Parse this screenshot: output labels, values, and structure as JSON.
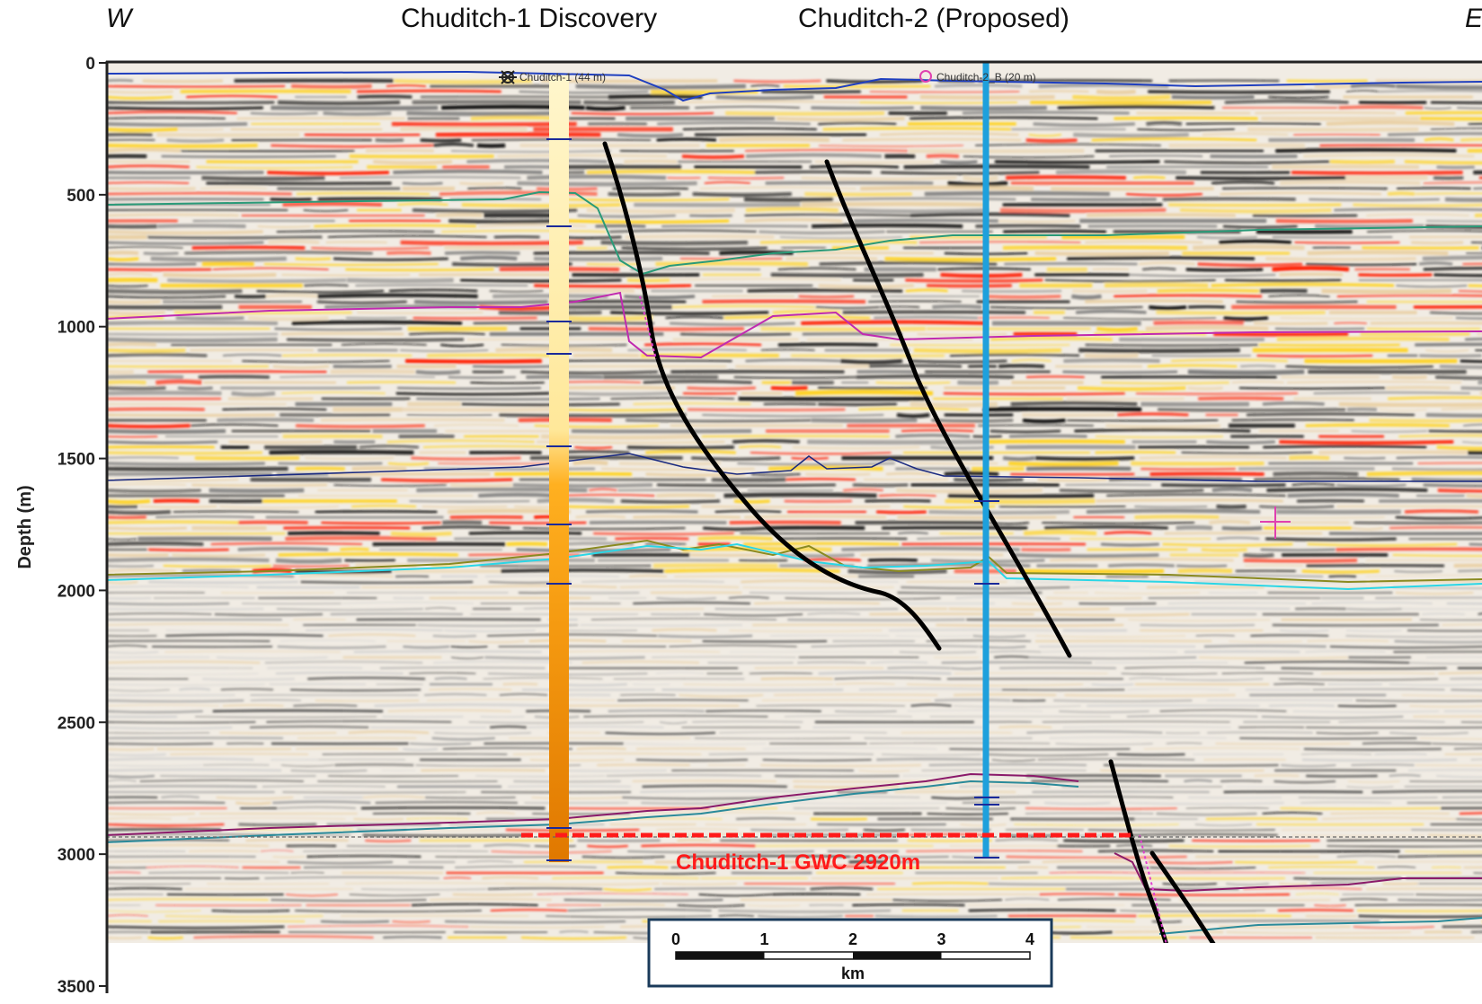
{
  "header": {
    "west": "W",
    "east": "E",
    "well1": "Chuditch-1 Discovery",
    "well2": "Chuditch-2 (Proposed)"
  },
  "axis": {
    "label": "Depth (m)",
    "ticks": [
      "0",
      "500",
      "1000",
      "1500",
      "2000",
      "2500",
      "3000",
      "3500"
    ],
    "tick_values": [
      0,
      500,
      1000,
      1500,
      2000,
      2500,
      3000,
      3500
    ],
    "range": [
      0,
      3500
    ]
  },
  "wells": {
    "w1": {
      "label": "Chuditch-1 (44 m)",
      "symbol": "dry-gas-well-icon"
    },
    "w2": {
      "label": "Chuditch-2_B (20 m)",
      "symbol": "proposed-well-icon"
    }
  },
  "gwc": {
    "label": "Chuditch-1 GWC 2920m",
    "depth_m": 2920
  },
  "scalebar": {
    "unit": "km",
    "ticks": [
      "0",
      "1",
      "2",
      "3",
      "4"
    ]
  },
  "colors": {
    "seismic_red": "#ff1a00",
    "seismic_yellow": "#ffd21a",
    "seismic_tan": "#e9cfa2",
    "fault": "#000000",
    "well2_track": "#1ea0dc",
    "gwc_line": "#ff1a1a",
    "horizon_blue": "#1f3fbf",
    "horizon_green": "#2a9a78",
    "horizon_magenta": "#c02ab0",
    "horizon_navy": "#1a2a80",
    "horizon_cyan": "#2ad6e6",
    "horizon_olive": "#8a8a20",
    "horizon_purple": "#8a1a6a",
    "horizon_teal": "#2a8a9a"
  }
}
